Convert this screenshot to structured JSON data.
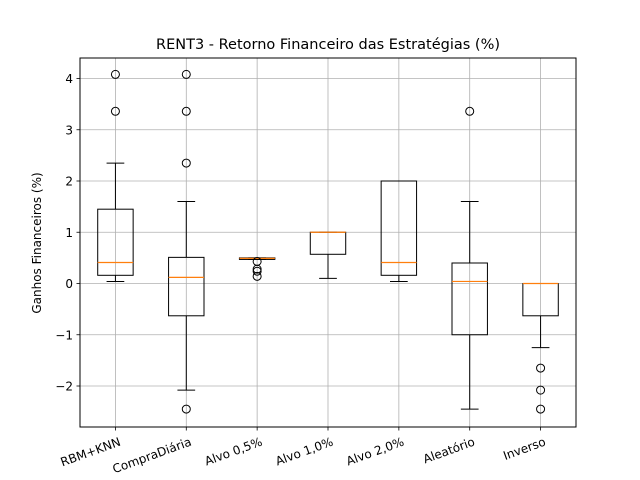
{
  "chart_data": {
    "type": "boxplot",
    "title": "RENT3 - Retorno Financeiro das Estratégias (%)",
    "xlabel": "",
    "ylabel": "Ganhos Financeiros (%)",
    "ylim": [
      -2.8,
      4.4
    ],
    "yticks": [
      -2,
      -1,
      0,
      1,
      2,
      3,
      4
    ],
    "grid": true,
    "colors": {
      "box": "#000000",
      "median": "#ff7f0e",
      "grid": "#b0b0b0"
    },
    "categories": [
      "RBM+KNN",
      "CompraDiária",
      "Alvo 0,5%",
      "Alvo 1,0%",
      "Alvo 2,0%",
      "Aleatório",
      "Inverso"
    ],
    "boxes": [
      {
        "whislo": 0.04,
        "q1": 0.16,
        "med": 0.41,
        "q3": 1.45,
        "whishi": 2.35,
        "fliers": [
          3.36,
          4.08
        ]
      },
      {
        "whislo": -2.08,
        "q1": -0.63,
        "med": 0.12,
        "q3": 0.51,
        "whishi": 1.6,
        "fliers": [
          -2.45,
          2.35,
          3.36,
          4.08
        ]
      },
      {
        "whislo": 0.47,
        "q1": 0.47,
        "med": 0.49,
        "q3": 0.5,
        "whishi": 0.5,
        "fliers": [
          0.43,
          0.28,
          0.24,
          0.14
        ]
      },
      {
        "whislo": 0.1,
        "q1": 0.57,
        "med": 1.0,
        "q3": 1.0,
        "whishi": 1.0,
        "fliers": []
      },
      {
        "whislo": 0.04,
        "q1": 0.16,
        "med": 0.41,
        "q3": 2.0,
        "whishi": 2.0,
        "fliers": []
      },
      {
        "whislo": -2.45,
        "q1": -1.0,
        "med": 0.04,
        "q3": 0.4,
        "whishi": 1.6,
        "fliers": [
          3.36
        ]
      },
      {
        "whislo": -1.25,
        "q1": -0.63,
        "med": 0.0,
        "q3": 0.0,
        "whishi": 0.0,
        "fliers": [
          -1.65,
          -2.08,
          -2.45
        ]
      }
    ]
  }
}
